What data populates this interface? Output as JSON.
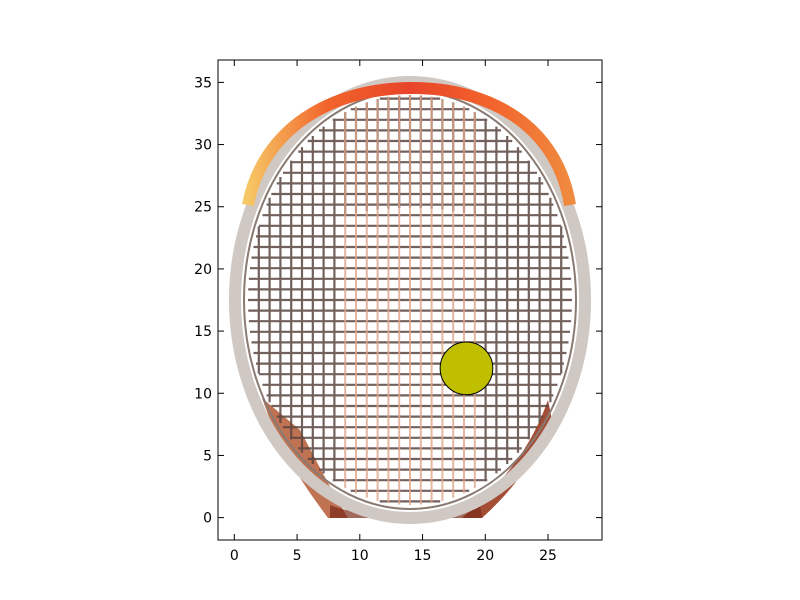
{
  "chart_data": {
    "type": "scatter",
    "title": "",
    "xlabel": "",
    "ylabel": "",
    "xlim": [
      -1.3,
      29.3
    ],
    "ylim": [
      -1.8,
      36.8
    ],
    "xticks": [
      0,
      5,
      10,
      15,
      20,
      25
    ],
    "yticks": [
      0,
      5,
      10,
      15,
      20,
      25,
      30,
      35
    ],
    "grid": false,
    "legend": "none",
    "background_image": "tennis-racket-photo",
    "points": [
      {
        "x": 18.5,
        "y": 12.0,
        "radius": 2.1,
        "color": "#bfbf00"
      }
    ]
  }
}
